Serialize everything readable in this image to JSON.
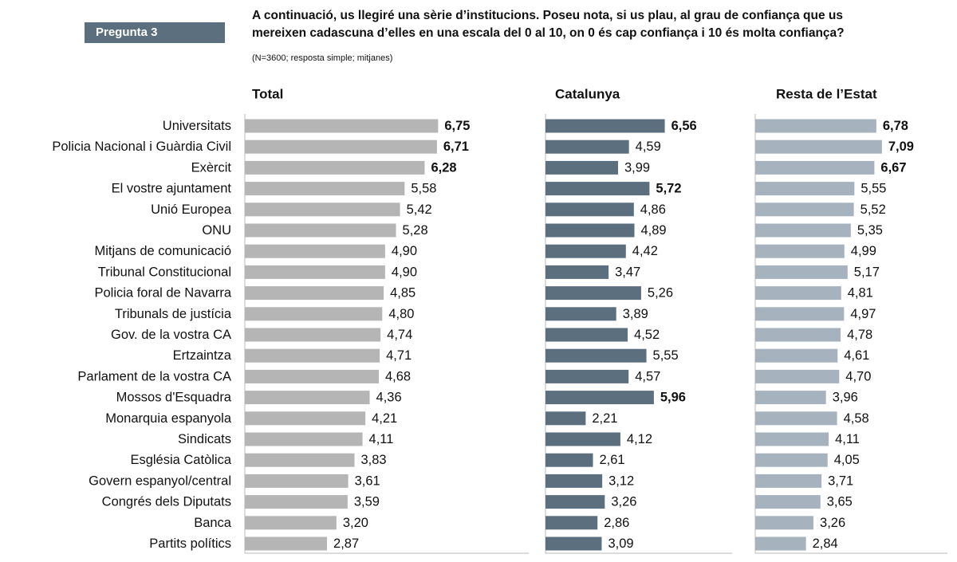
{
  "header": {
    "badge": "Pregunta 3",
    "question_line1": "A continuació, us llegiré una sèrie d’institucions. Poseu nota, si us plau, al grau de confiança que us",
    "question_line2": "mereixen cadascuna d’elles en una escala del 0 al 10, on 0 és cap confiança i 10 és molta confiança?",
    "note": "(N=3600; resposta simple; mitjanes)"
  },
  "chart_data": {
    "type": "bar",
    "orientation": "horizontal",
    "xlim": [
      0,
      10
    ],
    "grid": false,
    "categories": [
      "Universitats",
      "Policia Nacional i Guàrdia Civil",
      "Exèrcit",
      "El vostre ajuntament",
      "Unió Europea",
      "ONU",
      "Mitjans de comunicació",
      "Tribunal Constitucional",
      "Policia foral de Navarra",
      "Tribunals de justícia",
      "Gov. de la vostra CA",
      "Ertzaintza",
      "Parlament de la vostra CA",
      "Mossos d'Esquadra",
      "Monarquia espanyola",
      "Sindicats",
      "Església Catòlica",
      "Govern espanyol/central",
      "Congrés dels Diputats",
      "Banca",
      "Partits polítics"
    ],
    "series": [
      {
        "name": "Total",
        "color": "#b5b5b5",
        "values": [
          6.75,
          6.71,
          6.28,
          5.58,
          5.42,
          5.28,
          4.9,
          4.9,
          4.85,
          4.8,
          4.74,
          4.71,
          4.68,
          4.36,
          4.21,
          4.11,
          3.83,
          3.61,
          3.59,
          3.2,
          2.87
        ],
        "labels": [
          "6,75",
          "6,71",
          "6,28",
          "5,58",
          "5,42",
          "5,28",
          "4,90",
          "4,90",
          "4,85",
          "4,80",
          "4,74",
          "4,71",
          "4,68",
          "4,36",
          "4,21",
          "4,11",
          "3,83",
          "3,61",
          "3,59",
          "3,20",
          "2,87"
        ],
        "bold": [
          true,
          true,
          true,
          false,
          false,
          false,
          false,
          false,
          false,
          false,
          false,
          false,
          false,
          false,
          false,
          false,
          false,
          false,
          false,
          false,
          false
        ]
      },
      {
        "name": "Catalunya",
        "color": "#5b6f7f",
        "values": [
          6.56,
          4.59,
          3.99,
          5.72,
          4.86,
          4.89,
          4.42,
          3.47,
          5.26,
          3.89,
          4.52,
          5.55,
          4.57,
          5.96,
          2.21,
          4.12,
          2.61,
          3.12,
          3.26,
          2.86,
          3.09
        ],
        "labels": [
          "6,56",
          "4,59",
          "3,99",
          "5,72",
          "4,86",
          "4,89",
          "4,42",
          "3,47",
          "5,26",
          "3,89",
          "4,52",
          "5,55",
          "4,57",
          "5,96",
          "2,21",
          "4,12",
          "2,61",
          "3,12",
          "3,26",
          "2,86",
          "3,09"
        ],
        "bold": [
          true,
          false,
          false,
          true,
          false,
          false,
          false,
          false,
          false,
          false,
          false,
          false,
          false,
          true,
          false,
          false,
          false,
          false,
          false,
          false,
          false
        ]
      },
      {
        "name": "Resta de l’Estat",
        "color": "#a6b3be",
        "values": [
          6.78,
          7.09,
          6.67,
          5.55,
          5.52,
          5.35,
          4.99,
          5.17,
          4.81,
          4.97,
          4.78,
          4.61,
          4.7,
          3.96,
          4.58,
          4.11,
          4.05,
          3.71,
          3.65,
          3.26,
          2.84
        ],
        "labels": [
          "6,78",
          "7,09",
          "6,67",
          "5,55",
          "5,52",
          "5,35",
          "4,99",
          "5,17",
          "4,81",
          "4,97",
          "4,78",
          "4,61",
          "4,70",
          "3,96",
          "4,58",
          "4,11",
          "4,05",
          "3,71",
          "3,65",
          "3,26",
          "2,84"
        ],
        "bold": [
          true,
          true,
          true,
          false,
          false,
          false,
          false,
          false,
          false,
          false,
          false,
          false,
          false,
          false,
          false,
          false,
          false,
          false,
          false,
          false,
          false
        ]
      }
    ]
  }
}
